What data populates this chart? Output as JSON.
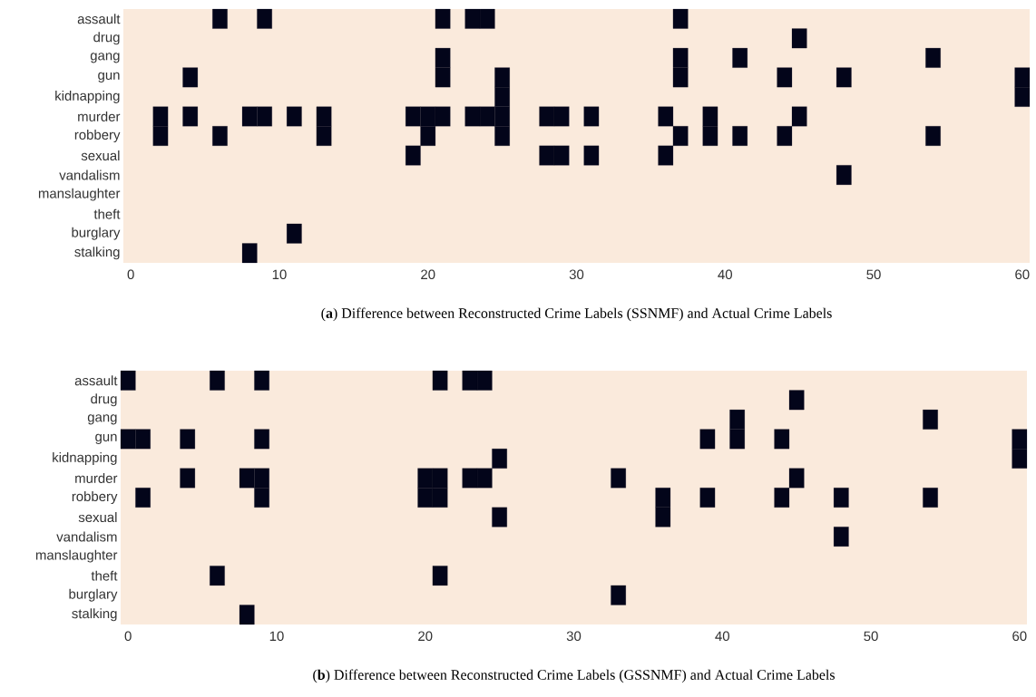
{
  "chart_data": [
    {
      "type": "scatter",
      "orientation": "horizontal",
      "title": "(**a**)  Difference between Reconstructed Crime Labels (SSNMF) and Actual Crime Labels",
      "categories": [
        "assault",
        "drug",
        "gang",
        "gun",
        "kidnapping",
        "murder",
        "robbery",
        "sexual",
        "vandalism",
        "manslaughter",
        "theft",
        "burglary",
        "stalking"
      ],
      "xlim": [
        -0.5,
        60.5
      ],
      "xticks": [
        0,
        10,
        20,
        30,
        40,
        50,
        60
      ],
      "marker": "square",
      "series": [
        {
          "color": "#03051a",
          "x": [
            "assault",
            "assault",
            "assault",
            "assault",
            "assault",
            "assault",
            "drug",
            "gang",
            "gang",
            "gang",
            "gang",
            "gun",
            "gun",
            "gun",
            "gun",
            "gun",
            "gun",
            "gun",
            "kidnapping",
            "kidnapping",
            "murder",
            "murder",
            "murder",
            "murder",
            "murder",
            "murder",
            "murder",
            "murder",
            "murder",
            "murder",
            "murder",
            "murder",
            "murder",
            "murder",
            "murder",
            "murder",
            "murder",
            "murder",
            "robbery",
            "robbery",
            "robbery",
            "robbery",
            "robbery",
            "robbery",
            "robbery",
            "robbery",
            "robbery",
            "robbery",
            "sexual",
            "sexual",
            "sexual",
            "sexual",
            "sexual",
            "vandalism",
            "burglary",
            "stalking"
          ],
          "values": [
            6,
            9,
            21,
            23,
            24,
            37,
            45,
            21,
            37,
            41,
            54,
            4,
            21,
            25,
            37,
            44,
            48,
            60,
            25,
            60,
            2,
            4,
            8,
            9,
            11,
            13,
            19,
            20,
            21,
            23,
            24,
            25,
            28,
            29,
            31,
            36,
            39,
            45,
            2,
            6,
            13,
            20,
            25,
            37,
            39,
            41,
            44,
            54,
            19,
            28,
            29,
            31,
            36,
            48,
            11,
            8
          ]
        }
      ]
    },
    {
      "type": "scatter",
      "orientation": "horizontal",
      "title": "(**b**)  Difference between Reconstructed Crime Labels (GSSNMF) and Actual Crime Labels",
      "categories": [
        "assault",
        "drug",
        "gang",
        "gun",
        "kidnapping",
        "murder",
        "robbery",
        "sexual",
        "vandalism",
        "manslaughter",
        "theft",
        "burglary",
        "stalking"
      ],
      "xlim": [
        -0.5,
        60.5
      ],
      "xticks": [
        0,
        10,
        20,
        30,
        40,
        50,
        60
      ],
      "marker": "square",
      "series": [
        {
          "color": "#03051a",
          "x": [
            "assault",
            "assault",
            "assault",
            "assault",
            "assault",
            "assault",
            "drug",
            "gang",
            "gang",
            "gun",
            "gun",
            "gun",
            "gun",
            "gun",
            "gun",
            "gun",
            "gun",
            "kidnapping",
            "kidnapping",
            "murder",
            "murder",
            "murder",
            "murder",
            "murder",
            "murder",
            "murder",
            "murder",
            "murder",
            "robbery",
            "robbery",
            "robbery",
            "robbery",
            "robbery",
            "robbery",
            "robbery",
            "robbery",
            "robbery",
            "sexual",
            "sexual",
            "vandalism",
            "theft",
            "theft",
            "burglary",
            "stalking"
          ],
          "values": [
            0,
            6,
            9,
            21,
            23,
            24,
            45,
            41,
            54,
            0,
            1,
            4,
            9,
            39,
            41,
            44,
            60,
            25,
            60,
            4,
            8,
            9,
            20,
            21,
            23,
            24,
            33,
            45,
            1,
            9,
            20,
            21,
            36,
            39,
            44,
            48,
            54,
            25,
            36,
            48,
            6,
            21,
            33,
            8
          ]
        }
      ]
    }
  ]
}
